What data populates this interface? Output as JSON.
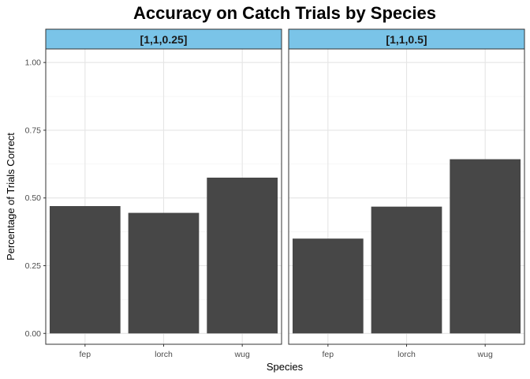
{
  "chart_data": {
    "type": "bar",
    "title": "Accuracy on Catch Trials by Species",
    "xlabel": "Species",
    "ylabel": "Percentage of Trials Correct",
    "categories": [
      "fep",
      "lorch",
      "wug"
    ],
    "ylim": [
      -0.04,
      1.05
    ],
    "yticks": [
      "0.00",
      "0.25",
      "0.50",
      "0.75",
      "1.00"
    ],
    "grid": true,
    "facets": [
      {
        "label": "[1,1,0.25]",
        "values": [
          0.47,
          0.445,
          0.575
        ]
      },
      {
        "label": "[1,1,0.5]",
        "values": [
          0.35,
          0.468,
          0.643
        ]
      }
    ],
    "colors": {
      "bar": "#474747",
      "strip_fill": "#7ac4e8",
      "strip_border": "#333333",
      "panel_border": "#333333",
      "grid_major": "#e5e5e5",
      "grid_minor": "#f2f2f2"
    }
  }
}
